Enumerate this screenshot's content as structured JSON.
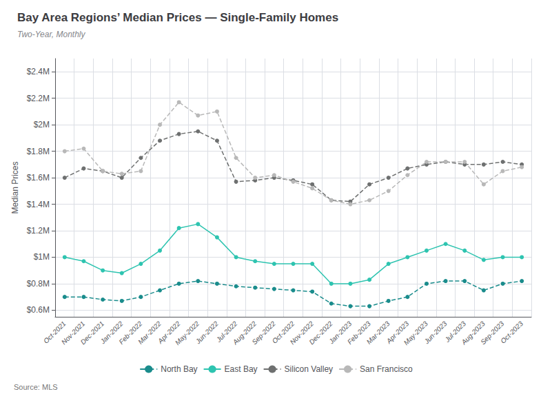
{
  "chart_data": {
    "type": "line",
    "title": "Bay Area Regions’ Median Prices — Single-Family Homes",
    "subtitle": "Two-Year, Monthly",
    "annotations": [
      "Source: MLS"
    ],
    "ylabel": "Median Prices",
    "categories": [
      "Oct-2021",
      "Nov-2021",
      "Dec-2021",
      "Jan-2022",
      "Feb-2022",
      "Mar-2022",
      "Apr-2022",
      "May-2022",
      "Jun-2022",
      "Jul-2022",
      "Aug-2022",
      "Sep-2022",
      "Oct-2022",
      "Nov-2022",
      "Dec-2022",
      "Jan-2023",
      "Feb-2023",
      "Mar-2023",
      "Apr-2023",
      "May-2023",
      "Jun-2023",
      "Jul-2023",
      "Aug-2023",
      "Sep-2023",
      "Oct-2023"
    ],
    "series": [
      {
        "name": "North Bay",
        "color": "#1a8c8c",
        "line_style": "dashed",
        "marker": "circle",
        "values": [
          0.7,
          0.7,
          0.68,
          0.67,
          0.7,
          0.75,
          0.8,
          0.82,
          0.8,
          0.78,
          0.77,
          0.76,
          0.75,
          0.74,
          0.65,
          0.63,
          0.63,
          0.67,
          0.7,
          0.8,
          0.82,
          0.82,
          0.75,
          0.8,
          0.82
        ]
      },
      {
        "name": "East Bay",
        "color": "#2ec4b0",
        "line_style": "solid",
        "marker": "circle",
        "values": [
          1.0,
          0.97,
          0.9,
          0.88,
          0.95,
          1.05,
          1.22,
          1.25,
          1.15,
          1.0,
          0.97,
          0.95,
          0.95,
          0.95,
          0.8,
          0.8,
          0.83,
          0.95,
          1.0,
          1.05,
          1.1,
          1.05,
          0.98,
          1.0,
          1.0
        ]
      },
      {
        "name": "Silicon Valley",
        "color": "#6e7070",
        "line_style": "dashed",
        "marker": "circle",
        "values": [
          1.6,
          1.67,
          1.65,
          1.6,
          1.75,
          1.88,
          1.93,
          1.95,
          1.88,
          1.57,
          1.58,
          1.6,
          1.58,
          1.55,
          1.43,
          1.42,
          1.55,
          1.6,
          1.67,
          1.7,
          1.72,
          1.7,
          1.7,
          1.72,
          1.7
        ]
      },
      {
        "name": "San Francisco",
        "color": "#b8b8b8",
        "line_style": "dashed",
        "marker": "circle",
        "values": [
          1.8,
          1.82,
          1.65,
          1.63,
          1.65,
          2.0,
          2.17,
          2.07,
          2.1,
          1.75,
          1.6,
          1.62,
          1.57,
          1.52,
          1.43,
          1.4,
          1.43,
          1.5,
          1.62,
          1.72,
          1.72,
          1.72,
          1.55,
          1.65,
          1.68
        ]
      }
    ],
    "ylim": [
      0.55,
      2.5
    ],
    "yticks": [
      {
        "value": 0.6,
        "label": "$0.6M"
      },
      {
        "value": 0.8,
        "label": "$0.8M"
      },
      {
        "value": 1.0,
        "label": "$1M"
      },
      {
        "value": 1.2,
        "label": "$1.2M"
      },
      {
        "value": 1.4,
        "label": "$1.4M"
      },
      {
        "value": 1.6,
        "label": "$1.6M"
      },
      {
        "value": 1.8,
        "label": "$1.8M"
      },
      {
        "value": 2.0,
        "label": "$2M"
      },
      {
        "value": 2.2,
        "label": "$2.2M"
      },
      {
        "value": 2.4,
        "label": "$2.4M"
      }
    ],
    "grid": true,
    "legend": "bottom"
  }
}
